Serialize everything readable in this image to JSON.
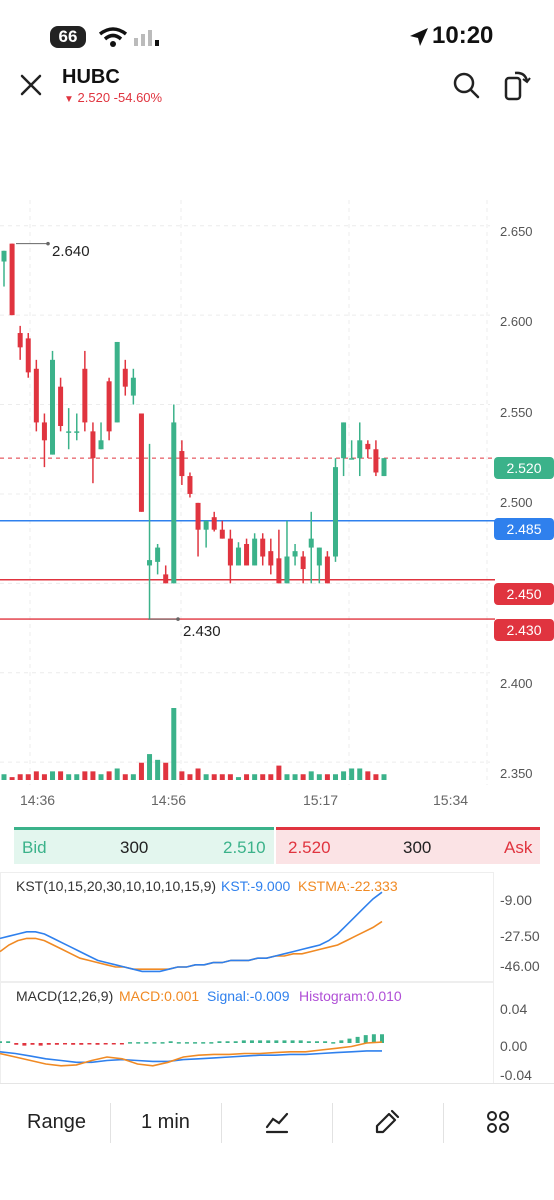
{
  "status_bar": {
    "time": "10:20",
    "battery": "66"
  },
  "header": {
    "symbol": "HUBC",
    "change_text": "2.520 -54.60%"
  },
  "price_axis": [
    "2.650",
    "2.600",
    "2.550",
    "2.500",
    "2.400",
    "2.350"
  ],
  "price_tags": {
    "last": "2.520",
    "blue_line": "2.485",
    "line_450": "2.450",
    "line_430": "2.430"
  },
  "annotations": {
    "high": "2.640",
    "low": "2.430"
  },
  "time_axis": [
    "14:36",
    "14:56",
    "15:17",
    "15:34"
  ],
  "bid_ask": {
    "bid_label": "Bid",
    "bid_qty": "300",
    "bid_price": "2.510",
    "ask_price": "2.520",
    "ask_qty": "300",
    "ask_label": "Ask"
  },
  "kst": {
    "params": "KST(10,15,20,30,10,10,10,15,9)",
    "kst_value": "KST:-9.000",
    "kstma_value": "KSTMA:-22.333",
    "axis": [
      "-9.00",
      "-27.50",
      "-46.00"
    ]
  },
  "macd": {
    "params": "MACD(12,26,9)",
    "macd_value": "MACD:0.001",
    "signal_value": "Signal:-0.009",
    "histogram_value": "Histogram:0.010",
    "axis": [
      "0.04",
      "0.00",
      "-0.04"
    ]
  },
  "toolbar": {
    "range_label": "Range",
    "interval_label": "1 min"
  },
  "colors": {
    "up": "#3bb28a",
    "down": "#e0343f",
    "blue": "#2f80ed",
    "orange": "#f08a24",
    "purple": "#b04fd6"
  },
  "chart_data": {
    "type": "candlestick",
    "ylim": [
      2.34,
      2.67
    ],
    "candles": [
      {
        "o": 2.63,
        "h": 2.636,
        "l": 2.616,
        "c": 2.636
      },
      {
        "o": 2.64,
        "h": 2.64,
        "l": 2.6,
        "c": 2.6
      },
      {
        "o": 2.59,
        "h": 2.594,
        "l": 2.575,
        "c": 2.582
      },
      {
        "o": 2.587,
        "h": 2.59,
        "l": 2.565,
        "c": 2.568
      },
      {
        "o": 2.57,
        "h": 2.575,
        "l": 2.535,
        "c": 2.54
      },
      {
        "o": 2.54,
        "h": 2.545,
        "l": 2.515,
        "c": 2.53
      },
      {
        "o": 2.522,
        "h": 2.58,
        "l": 2.522,
        "c": 2.575
      },
      {
        "o": 2.56,
        "h": 2.565,
        "l": 2.535,
        "c": 2.538
      },
      {
        "o": 2.535,
        "h": 2.548,
        "l": 2.525,
        "c": 2.535
      },
      {
        "o": 2.535,
        "h": 2.545,
        "l": 2.53,
        "c": 2.535
      },
      {
        "o": 2.57,
        "h": 2.58,
        "l": 2.535,
        "c": 2.54
      },
      {
        "o": 2.535,
        "h": 2.54,
        "l": 2.506,
        "c": 2.52
      },
      {
        "o": 2.525,
        "h": 2.54,
        "l": 2.525,
        "c": 2.53
      },
      {
        "o": 2.563,
        "h": 2.565,
        "l": 2.53,
        "c": 2.535
      },
      {
        "o": 2.54,
        "h": 2.585,
        "l": 2.54,
        "c": 2.585
      },
      {
        "o": 2.57,
        "h": 2.575,
        "l": 2.555,
        "c": 2.56
      },
      {
        "o": 2.555,
        "h": 2.57,
        "l": 2.55,
        "c": 2.565
      },
      {
        "o": 2.545,
        "h": 2.545,
        "l": 2.49,
        "c": 2.49
      },
      {
        "o": 2.46,
        "h": 2.528,
        "l": 2.43,
        "c": 2.463
      },
      {
        "o": 2.462,
        "h": 2.472,
        "l": 2.455,
        "c": 2.47
      },
      {
        "o": 2.455,
        "h": 2.46,
        "l": 2.45,
        "c": 2.45
      },
      {
        "o": 2.45,
        "h": 2.55,
        "l": 2.45,
        "c": 2.54
      },
      {
        "o": 2.524,
        "h": 2.53,
        "l": 2.505,
        "c": 2.51
      },
      {
        "o": 2.51,
        "h": 2.512,
        "l": 2.498,
        "c": 2.5
      },
      {
        "o": 2.495,
        "h": 2.495,
        "l": 2.465,
        "c": 2.48
      },
      {
        "o": 2.48,
        "h": 2.485,
        "l": 2.47,
        "c": 2.485
      },
      {
        "o": 2.487,
        "h": 2.49,
        "l": 2.479,
        "c": 2.48
      },
      {
        "o": 2.48,
        "h": 2.485,
        "l": 2.475,
        "c": 2.475
      },
      {
        "o": 2.475,
        "h": 2.48,
        "l": 2.45,
        "c": 2.46
      },
      {
        "o": 2.46,
        "h": 2.473,
        "l": 2.46,
        "c": 2.47
      },
      {
        "o": 2.472,
        "h": 2.475,
        "l": 2.46,
        "c": 2.46
      },
      {
        "o": 2.46,
        "h": 2.478,
        "l": 2.46,
        "c": 2.475
      },
      {
        "o": 2.475,
        "h": 2.478,
        "l": 2.46,
        "c": 2.465
      },
      {
        "o": 2.468,
        "h": 2.475,
        "l": 2.455,
        "c": 2.46
      },
      {
        "o": 2.464,
        "h": 2.48,
        "l": 2.45,
        "c": 2.45
      },
      {
        "o": 2.45,
        "h": 2.485,
        "l": 2.45,
        "c": 2.465
      },
      {
        "o": 2.465,
        "h": 2.472,
        "l": 2.46,
        "c": 2.468
      },
      {
        "o": 2.465,
        "h": 2.468,
        "l": 2.45,
        "c": 2.458
      },
      {
        "o": 2.47,
        "h": 2.49,
        "l": 2.45,
        "c": 2.475
      },
      {
        "o": 2.46,
        "h": 2.47,
        "l": 2.45,
        "c": 2.47
      },
      {
        "o": 2.465,
        "h": 2.468,
        "l": 2.45,
        "c": 2.45
      },
      {
        "o": 2.465,
        "h": 2.52,
        "l": 2.462,
        "c": 2.515
      },
      {
        "o": 2.52,
        "h": 2.54,
        "l": 2.51,
        "c": 2.54
      },
      {
        "o": 2.52,
        "h": 2.53,
        "l": 2.52,
        "c": 2.52
      },
      {
        "o": 2.52,
        "h": 2.54,
        "l": 2.51,
        "c": 2.53
      },
      {
        "o": 2.528,
        "h": 2.53,
        "l": 2.52,
        "c": 2.525
      },
      {
        "o": 2.525,
        "h": 2.53,
        "l": 2.51,
        "c": 2.512
      },
      {
        "o": 2.51,
        "h": 2.52,
        "l": 2.51,
        "c": 2.52
      }
    ],
    "volume": [
      2,
      1,
      2,
      2,
      3,
      2,
      3,
      3,
      2,
      2,
      3,
      3,
      2,
      3,
      4,
      2,
      2,
      6,
      9,
      7,
      6,
      25,
      3,
      2,
      4,
      2,
      2,
      2,
      2,
      1,
      2,
      2,
      2,
      2,
      5,
      2,
      2,
      2,
      3,
      2,
      2,
      2,
      3,
      4,
      4,
      3,
      2,
      2
    ],
    "kst": [
      -30,
      -29,
      -28,
      -27,
      -27,
      -28,
      -30,
      -32,
      -34,
      -36,
      -38,
      -40,
      -41,
      -42,
      -43,
      -44,
      -45,
      -45,
      -45,
      -44,
      -43,
      -43,
      -42,
      -42,
      -41,
      -41,
      -40,
      -40,
      -40,
      -39,
      -39,
      -38,
      -37,
      -36,
      -35,
      -34,
      -33,
      -31,
      -28,
      -24,
      -20,
      -16,
      -12,
      -9
    ],
    "kstma": [
      -36,
      -33,
      -31,
      -30,
      -30,
      -31,
      -33,
      -35,
      -37,
      -39,
      -40,
      -41,
      -42,
      -43,
      -43,
      -44,
      -44,
      -44,
      -44,
      -44,
      -43,
      -43,
      -42,
      -42,
      -41,
      -41,
      -40,
      -40,
      -40,
      -39,
      -39,
      -38,
      -38,
      -37,
      -37,
      -36,
      -35,
      -34,
      -33,
      -31,
      -29,
      -27,
      -25,
      -22.3
    ],
    "macd_line": [
      -0.012,
      -0.016,
      -0.02,
      -0.024,
      -0.026,
      -0.025,
      -0.02,
      -0.016,
      -0.018,
      -0.024,
      -0.026,
      -0.022,
      -0.016,
      -0.014,
      -0.013,
      -0.013,
      -0.012,
      -0.012,
      -0.011,
      -0.01,
      -0.01,
      -0.008,
      -0.006,
      -0.004,
      0.0,
      0.001
    ],
    "signal_line": [
      -0.01,
      -0.012,
      -0.015,
      -0.018,
      -0.02,
      -0.022,
      -0.022,
      -0.02,
      -0.019,
      -0.02,
      -0.021,
      -0.021,
      -0.019,
      -0.018,
      -0.017,
      -0.016,
      -0.015,
      -0.014,
      -0.014,
      -0.013,
      -0.013,
      -0.012,
      -0.011,
      -0.01,
      -0.009,
      -0.009
    ],
    "histogram": [
      0.002,
      0.002,
      -0.002,
      -0.003,
      -0.002,
      -0.003,
      -0.002,
      -0.002,
      -0.001,
      -0.002,
      -0.002,
      -0.001,
      -0.002,
      -0.001,
      -0.001,
      -0.001,
      0.001,
      0.001,
      0.001,
      0.001,
      0.001,
      0.002,
      0.001,
      0.001,
      0.001,
      0.001,
      0.001,
      0.002,
      0.002,
      0.002,
      0.003,
      0.003,
      0.003,
      0.003,
      0.003,
      0.003,
      0.003,
      0.003,
      0.002,
      0.002,
      0.002,
      0.001,
      0.003,
      0.005,
      0.007,
      0.009,
      0.01,
      0.01
    ]
  }
}
